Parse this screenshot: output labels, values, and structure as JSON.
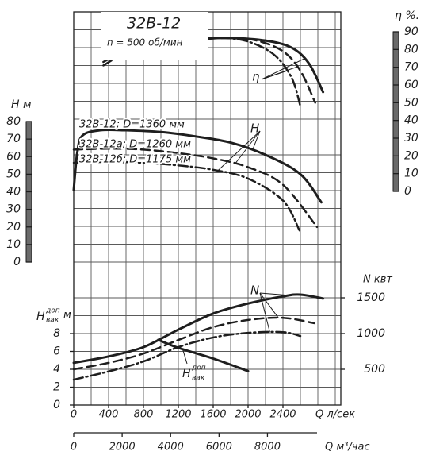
{
  "chart_data": {
    "type": "line",
    "title": "32В-12",
    "subtitle": "n = 500 об/мин",
    "grid": true,
    "xlabel": "Q л/сек",
    "xlim": [
      0,
      3000
    ],
    "xticks": [
      0,
      400,
      800,
      1200,
      1600,
      2000,
      2400
    ],
    "x2label": "Q м³/час",
    "x2lim": [
      0,
      10800
    ],
    "x2ticks": [
      0,
      2000,
      4000,
      6000,
      8000
    ],
    "ylabel": "H м",
    "ylim": [
      0,
      80
    ],
    "yticks": [
      0,
      10,
      20,
      30,
      40,
      50,
      60,
      70,
      80
    ],
    "y2label": "η %.",
    "y2lim": [
      0,
      90
    ],
    "y2ticks": [
      0,
      10,
      20,
      30,
      40,
      50,
      60,
      70,
      80,
      90
    ],
    "y3label": "N квт",
    "y3lim": [
      0,
      1500
    ],
    "y3ticks": [
      500,
      1000,
      1500
    ],
    "y4label": [
      "H",
      "доп",
      "вак",
      "м"
    ],
    "y4lim": [
      0,
      8
    ],
    "y4ticks": [
      0,
      2,
      4,
      6,
      8
    ],
    "annotations": [
      "η",
      "H",
      "N",
      [
        "H",
        "доп",
        "вак"
      ]
    ],
    "series": [
      {
        "name": "32В-12; D=1360 мм",
        "axis": "y",
        "style": "solid",
        "width": 3,
        "color": "#1e1e1e",
        "x": [
          0,
          40,
          100,
          300,
          600,
          1000,
          1400,
          1800,
          2200,
          2600,
          2840
        ],
        "values": [
          41,
          62,
          72,
          75,
          75,
          74,
          71.5,
          68,
          61,
          50,
          34
        ]
      },
      {
        "name": "32В-12а; D=1260 мм",
        "axis": "y",
        "style": "dashed",
        "width": 2.5,
        "color": "#1e1e1e",
        "x": [
          0,
          400,
          800,
          1200,
          1600,
          2000,
          2400,
          2790
        ],
        "values": [
          64,
          64.5,
          64,
          62,
          59,
          54,
          44,
          20
        ]
      },
      {
        "name": "32В-12б; D=1175 мм",
        "axis": "y",
        "style": "dashdot",
        "width": 2.5,
        "color": "#1e1e1e",
        "x": [
          0,
          400,
          800,
          1200,
          1600,
          2000,
          2400,
          2590
        ],
        "values": [
          56.5,
          57,
          56.5,
          55,
          52.5,
          47.5,
          35,
          18
        ]
      },
      {
        "axis": "y2",
        "style": "solid",
        "width": 3,
        "color": "#1e1e1e",
        "x": [
          340,
          600,
          1000,
          1400,
          1800,
          2200,
          2500,
          2700,
          2860
        ],
        "values": [
          76,
          81,
          84.5,
          86,
          86.5,
          85,
          81,
          72,
          56
        ]
      },
      {
        "axis": "y2",
        "style": "dashed",
        "width": 2.5,
        "color": "#1e1e1e",
        "x": [
          340,
          600,
          1000,
          1400,
          1800,
          2100,
          2400,
          2600,
          2770
        ],
        "values": [
          73,
          79,
          83.5,
          85.5,
          86.5,
          85,
          79,
          68,
          50
        ]
      },
      {
        "axis": "y2",
        "style": "dashdot",
        "width": 2.5,
        "color": "#1e1e1e",
        "x": [
          340,
          600,
          1000,
          1400,
          1700,
          2000,
          2300,
          2500,
          2600
        ],
        "values": [
          71,
          78,
          83,
          85.5,
          86.5,
          84.5,
          77,
          64,
          48
        ]
      },
      {
        "axis": "y3",
        "style": "solid",
        "width": 3,
        "color": "#1e1e1e",
        "x": [
          0,
          400,
          800,
          1200,
          1600,
          2000,
          2400,
          2600,
          2860
        ],
        "values": [
          590,
          680,
          810,
          1055,
          1280,
          1420,
          1520,
          1545,
          1490
        ]
      },
      {
        "axis": "y3",
        "style": "dashed",
        "width": 2.5,
        "color": "#1e1e1e",
        "x": [
          0,
          400,
          800,
          1200,
          1600,
          2000,
          2400,
          2760
        ],
        "values": [
          500,
          590,
          720,
          910,
          1090,
          1190,
          1220,
          1145
        ]
      },
      {
        "axis": "y3",
        "style": "dashdot",
        "width": 2.5,
        "color": "#1e1e1e",
        "x": [
          0,
          400,
          800,
          1200,
          1600,
          2000,
          2400,
          2600
        ],
        "values": [
          355,
          470,
          610,
          810,
          945,
          1010,
          1020,
          965
        ]
      },
      {
        "axis": "y4",
        "style": "solid",
        "width": 3,
        "color": "#1e1e1e",
        "x": [
          970,
          1200,
          1600,
          2000
        ],
        "values": [
          7.3,
          6.4,
          5.2,
          3.8
        ]
      }
    ]
  }
}
